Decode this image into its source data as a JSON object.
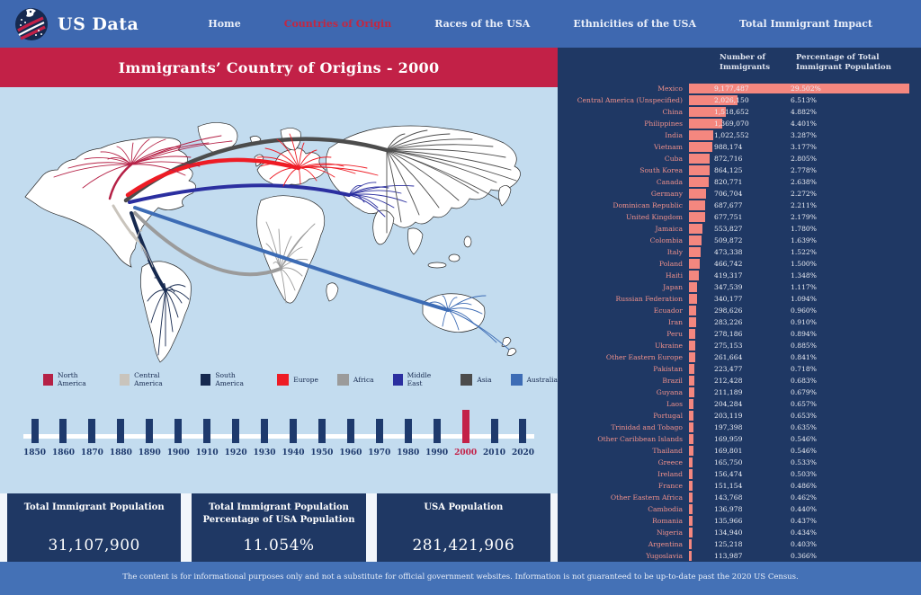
{
  "navbar": {
    "brand": "US Data",
    "items": [
      {
        "label": "Home",
        "active": false
      },
      {
        "label": "Countries of Origin",
        "active": true
      },
      {
        "label": "Races of the USA",
        "active": false
      },
      {
        "label": "Ethnicities of the USA",
        "active": false
      },
      {
        "label": "Total Immigrant Impact",
        "active": false
      }
    ]
  },
  "banner": {
    "title": "Immigrants’ Country of Origins - 2000"
  },
  "map": {
    "legend": [
      {
        "label": "North America",
        "color": "#b52146"
      },
      {
        "label": "Central America",
        "color": "#c9c4bc"
      },
      {
        "label": "South America",
        "color": "#16294f"
      },
      {
        "label": "Europe",
        "color": "#ee1c25"
      },
      {
        "label": "Africa",
        "color": "#9b9b9b"
      },
      {
        "label": "Middle East",
        "color": "#2b2fa0"
      },
      {
        "label": "Asia",
        "color": "#4c4c4c"
      },
      {
        "label": "Australia",
        "color": "#3d6cb5"
      }
    ]
  },
  "timeline": {
    "years": [
      "1850",
      "1860",
      "1870",
      "1880",
      "1890",
      "1900",
      "1910",
      "1920",
      "1930",
      "1940",
      "1950",
      "1960",
      "1970",
      "1980",
      "1990",
      "2000",
      "2010",
      "2020"
    ],
    "active_year": "2000"
  },
  "stats": [
    {
      "title": "Total Immigrant Population",
      "value": "31,107,900"
    },
    {
      "title": "Total Immigrant Population Percentage of USA Population",
      "value": "11.054%"
    },
    {
      "title": "USA Population",
      "value": "281,421,906"
    }
  ],
  "chart_data": {
    "type": "bar",
    "orientation": "horizontal",
    "title": "Immigrants’ Country of Origins - 2000",
    "col_headers": [
      "Number of Immigrants",
      "Percentage of Total Immigrant Population"
    ],
    "bar_color": "#f4877f",
    "xlabel": "Percentage of Total Immigrant Population",
    "xlim": [
      0,
      29.502
    ],
    "rows": [
      {
        "label": "Mexico",
        "count": "9,177,487",
        "pct": "29.502%"
      },
      {
        "label": "Central America (Unspecified)",
        "count": "2,026,150",
        "pct": "6.513%"
      },
      {
        "label": "China",
        "count": "1,518,652",
        "pct": "4.882%"
      },
      {
        "label": "Philippines",
        "count": "1,369,070",
        "pct": "4.401%"
      },
      {
        "label": "India",
        "count": "1,022,552",
        "pct": "3.287%"
      },
      {
        "label": "Vietnam",
        "count": "988,174",
        "pct": "3.177%"
      },
      {
        "label": "Cuba",
        "count": "872,716",
        "pct": "2.805%"
      },
      {
        "label": "South Korea",
        "count": "864,125",
        "pct": "2.778%"
      },
      {
        "label": "Canada",
        "count": "820,771",
        "pct": "2.638%"
      },
      {
        "label": "Germany",
        "count": "706,704",
        "pct": "2.272%"
      },
      {
        "label": "Dominican Republic",
        "count": "687,677",
        "pct": "2.211%"
      },
      {
        "label": "United Kingdom",
        "count": "677,751",
        "pct": "2.179%"
      },
      {
        "label": "Jamaica",
        "count": "553,827",
        "pct": "1.780%"
      },
      {
        "label": "Colombia",
        "count": "509,872",
        "pct": "1.639%"
      },
      {
        "label": "Italy",
        "count": "473,338",
        "pct": "1.522%"
      },
      {
        "label": "Poland",
        "count": "466,742",
        "pct": "1.500%"
      },
      {
        "label": "Haiti",
        "count": "419,317",
        "pct": "1.348%"
      },
      {
        "label": "Japan",
        "count": "347,539",
        "pct": "1.117%"
      },
      {
        "label": "Russian Federation",
        "count": "340,177",
        "pct": "1.094%"
      },
      {
        "label": "Ecuador",
        "count": "298,626",
        "pct": "0.960%"
      },
      {
        "label": "Iran",
        "count": "283,226",
        "pct": "0.910%"
      },
      {
        "label": "Peru",
        "count": "278,186",
        "pct": "0.894%"
      },
      {
        "label": "Ukraine",
        "count": "275,153",
        "pct": "0.885%"
      },
      {
        "label": "Other Eastern Europe",
        "count": "261,664",
        "pct": "0.841%"
      },
      {
        "label": "Pakistan",
        "count": "223,477",
        "pct": "0.718%"
      },
      {
        "label": "Brazil",
        "count": "212,428",
        "pct": "0.683%"
      },
      {
        "label": "Guyana",
        "count": "211,189",
        "pct": "0.679%"
      },
      {
        "label": "Laos",
        "count": "204,284",
        "pct": "0.657%"
      },
      {
        "label": "Portugal",
        "count": "203,119",
        "pct": "0.653%"
      },
      {
        "label": "Trinidad and Tobago",
        "count": "197,398",
        "pct": "0.635%"
      },
      {
        "label": "Other Caribbean Islands",
        "count": "169,959",
        "pct": "0.546%"
      },
      {
        "label": "Thailand",
        "count": "169,801",
        "pct": "0.546%"
      },
      {
        "label": "Greece",
        "count": "165,750",
        "pct": "0.533%"
      },
      {
        "label": "Ireland",
        "count": "156,474",
        "pct": "0.503%"
      },
      {
        "label": "France",
        "count": "151,154",
        "pct": "0.486%"
      },
      {
        "label": "Other Eastern Africa",
        "count": "143,768",
        "pct": "0.462%"
      },
      {
        "label": "Cambodia",
        "count": "136,978",
        "pct": "0.440%"
      },
      {
        "label": "Romania",
        "count": "135,966",
        "pct": "0.437%"
      },
      {
        "label": "Nigeria",
        "count": "134,940",
        "pct": "0.434%"
      },
      {
        "label": "Argentina",
        "count": "125,218",
        "pct": "0.403%"
      },
      {
        "label": "Yugoslavia",
        "count": "113,987",
        "pct": "0.366%"
      }
    ]
  },
  "footer": {
    "text": "The content is for informational purposes only and not a substitute for official government websites. Information is not guaranteed to be up-to-date past the 2020 US Census."
  }
}
